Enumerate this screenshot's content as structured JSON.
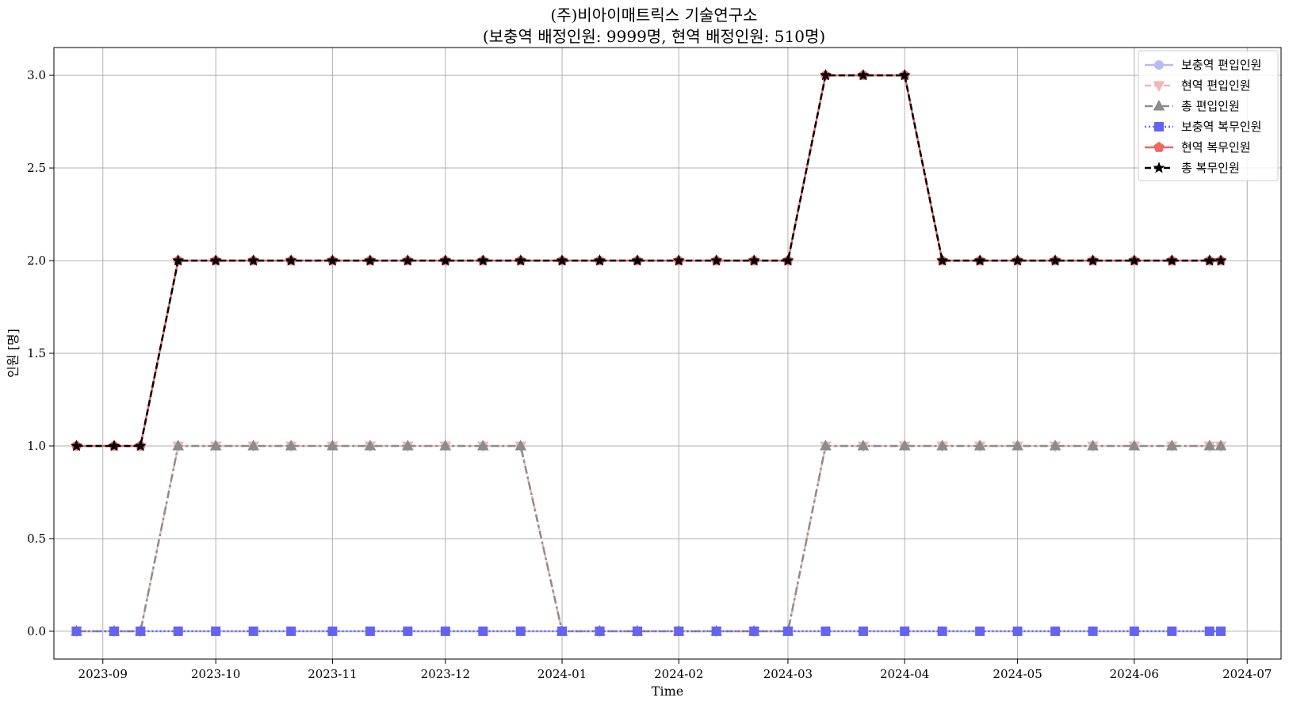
{
  "chart_data": {
    "type": "line",
    "title": "(주)비아이매트릭스 기술연구소",
    "subtitle": "(보충역 배정인원: 9999명, 현역 배정인원: 510명)",
    "xlabel": "Time",
    "ylabel": "인원 [명]",
    "ylim": [
      -0.15,
      3.15
    ],
    "yticks": [
      "0.0",
      "0.5",
      "1.0",
      "1.5",
      "2.0",
      "2.5",
      "3.0"
    ],
    "xlim": [
      "2023-08-19",
      "2024-07-10"
    ],
    "xticks": [
      "2023-09",
      "2023-10",
      "2023-11",
      "2023-12",
      "2024-01",
      "2024-02",
      "2024-03",
      "2024-04",
      "2024-05",
      "2024-06",
      "2024-07"
    ],
    "grid": true,
    "legend_position": "top-right",
    "x": [
      "2023-08-25",
      "2023-09-04",
      "2023-09-11",
      "2023-09-21",
      "2023-10-01",
      "2023-10-11",
      "2023-10-21",
      "2023-11-01",
      "2023-11-11",
      "2023-11-21",
      "2023-12-01",
      "2023-12-11",
      "2023-12-21",
      "2024-01-01",
      "2024-01-11",
      "2024-01-21",
      "2024-02-01",
      "2024-02-11",
      "2024-02-21",
      "2024-03-01",
      "2024-03-11",
      "2024-03-21",
      "2024-04-01",
      "2024-04-11",
      "2024-04-21",
      "2024-05-01",
      "2024-05-11",
      "2024-05-21",
      "2024-06-01",
      "2024-06-11",
      "2024-06-21",
      "2024-06-24"
    ],
    "series": [
      {
        "name": "보충역 편입인원",
        "color": "#b8bdf0",
        "dash": "solid",
        "marker": "circle",
        "values": [
          0,
          0,
          0,
          0,
          0,
          0,
          0,
          0,
          0,
          0,
          0,
          0,
          0,
          0,
          0,
          0,
          0,
          0,
          0,
          0,
          0,
          0,
          0,
          0,
          0,
          0,
          0,
          0,
          0,
          0,
          0,
          0
        ]
      },
      {
        "name": "현역 편입인원",
        "color": "#f2b6b6",
        "dash": "dashed",
        "marker": "triangle-down",
        "values": [
          0,
          0,
          0,
          1,
          1,
          1,
          1,
          1,
          1,
          1,
          1,
          1,
          1,
          0,
          0,
          0,
          0,
          0,
          0,
          0,
          1,
          1,
          1,
          1,
          1,
          1,
          1,
          1,
          1,
          1,
          1,
          1
        ]
      },
      {
        "name": "총 편입인원",
        "color": "#8c8c8c",
        "dash": "dashdot",
        "marker": "triangle-up",
        "values": [
          0,
          0,
          0,
          1,
          1,
          1,
          1,
          1,
          1,
          1,
          1,
          1,
          1,
          0,
          0,
          0,
          0,
          0,
          0,
          0,
          1,
          1,
          1,
          1,
          1,
          1,
          1,
          1,
          1,
          1,
          1,
          1
        ]
      },
      {
        "name": "보충역 복무인원",
        "color": "#6464f0",
        "dash": "dotted",
        "marker": "square",
        "values": [
          0,
          0,
          0,
          0,
          0,
          0,
          0,
          0,
          0,
          0,
          0,
          0,
          0,
          0,
          0,
          0,
          0,
          0,
          0,
          0,
          0,
          0,
          0,
          0,
          0,
          0,
          0,
          0,
          0,
          0,
          0,
          0
        ]
      },
      {
        "name": "현역 복무인원",
        "color": "#f06464",
        "dash": "solid",
        "marker": "pentagon",
        "values": [
          1,
          1,
          1,
          2,
          2,
          2,
          2,
          2,
          2,
          2,
          2,
          2,
          2,
          2,
          2,
          2,
          2,
          2,
          2,
          2,
          3,
          3,
          3,
          2,
          2,
          2,
          2,
          2,
          2,
          2,
          2,
          2
        ]
      },
      {
        "name": "총 복무인원",
        "color": "#000000",
        "dash": "dashed",
        "marker": "star",
        "values": [
          1,
          1,
          1,
          2,
          2,
          2,
          2,
          2,
          2,
          2,
          2,
          2,
          2,
          2,
          2,
          2,
          2,
          2,
          2,
          2,
          3,
          3,
          3,
          2,
          2,
          2,
          2,
          2,
          2,
          2,
          2,
          2
        ]
      }
    ]
  }
}
